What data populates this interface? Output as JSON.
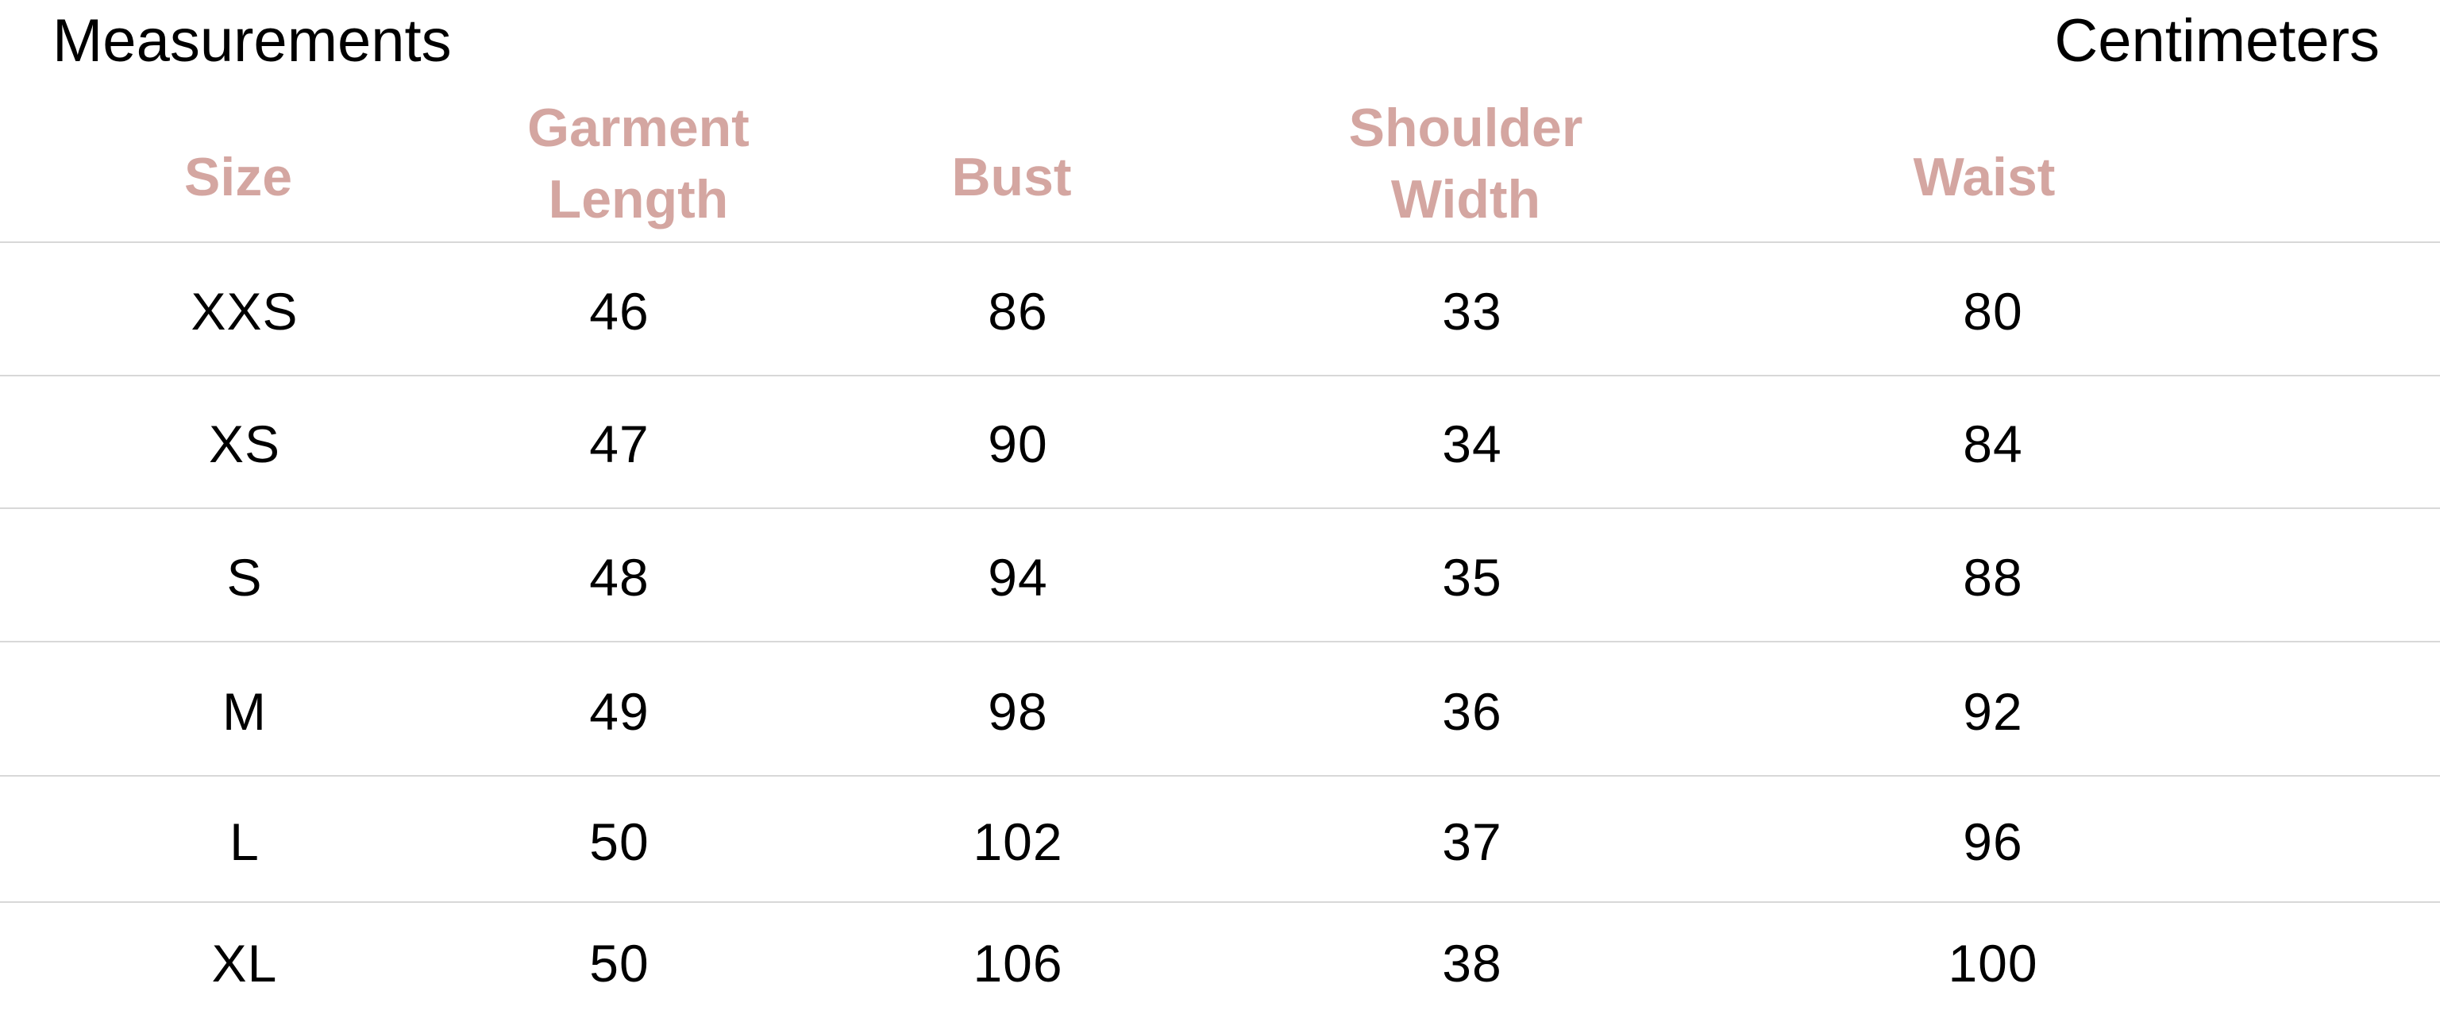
{
  "title_left": "Measurements",
  "title_right": "Centimeters",
  "header_color": "#d4a6a1",
  "columns": [
    "Size",
    "Garment\nLength",
    "Bust",
    "Shoulder\nWidth",
    "Waist"
  ],
  "rows": [
    [
      "XXS",
      "46",
      "86",
      "33",
      "80"
    ],
    [
      "XS",
      "47",
      "90",
      "34",
      "84"
    ],
    [
      "S",
      "48",
      "94",
      "35",
      "88"
    ],
    [
      "M",
      "49",
      "98",
      "36",
      "92"
    ],
    [
      "L",
      "50",
      "102",
      "37",
      "96"
    ],
    [
      "XL",
      "50",
      "106",
      "38",
      "100"
    ]
  ]
}
